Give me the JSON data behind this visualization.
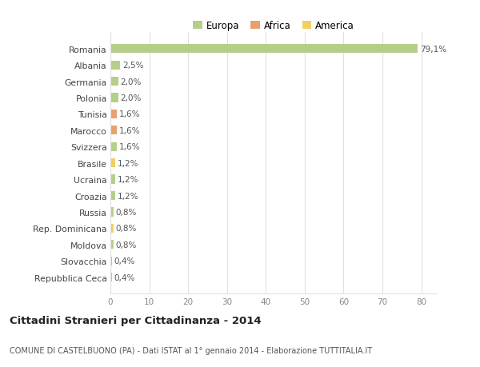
{
  "countries": [
    "Romania",
    "Albania",
    "Germania",
    "Polonia",
    "Tunisia",
    "Marocco",
    "Svizzera",
    "Brasile",
    "Ucraina",
    "Croazia",
    "Russia",
    "Rep. Dominicana",
    "Moldova",
    "Slovacchia",
    "Repubblica Ceca"
  ],
  "values": [
    79.1,
    2.5,
    2.0,
    2.0,
    1.6,
    1.6,
    1.6,
    1.2,
    1.2,
    1.2,
    0.8,
    0.8,
    0.8,
    0.4,
    0.4
  ],
  "labels": [
    "79,1%",
    "2,5%",
    "2,0%",
    "2,0%",
    "1,6%",
    "1,6%",
    "1,6%",
    "1,2%",
    "1,2%",
    "1,2%",
    "0,8%",
    "0,8%",
    "0,8%",
    "0,4%",
    "0,4%"
  ],
  "continents": [
    "Europa",
    "Europa",
    "Europa",
    "Europa",
    "Africa",
    "Africa",
    "Europa",
    "America",
    "Europa",
    "Europa",
    "Europa",
    "America",
    "Europa",
    "Europa",
    "Europa"
  ],
  "colors": {
    "Europa": "#b5cf8a",
    "Africa": "#e8a070",
    "America": "#f0d060"
  },
  "background_color": "#ffffff",
  "grid_color": "#e0e0e0",
  "title": "Cittadini Stranieri per Cittadinanza - 2014",
  "subtitle": "COMUNE DI CASTELBUONO (PA) - Dati ISTAT al 1° gennaio 2014 - Elaborazione TUTTITALIA.IT",
  "xlim": [
    0,
    84
  ],
  "xticks": [
    0,
    10,
    20,
    30,
    40,
    50,
    60,
    70,
    80
  ],
  "legend_labels": [
    "Europa",
    "Africa",
    "America"
  ],
  "legend_colors": [
    "#b5cf8a",
    "#e8a070",
    "#f0d060"
  ]
}
